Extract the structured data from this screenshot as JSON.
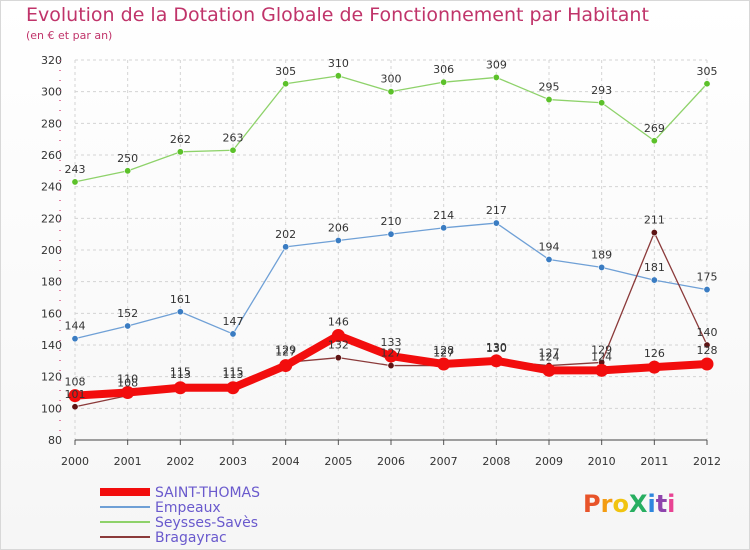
{
  "header": {
    "title": "Evolution de la Dotation Globale de Fonctionnement par Habitant",
    "subtitle": "(en € et par an)"
  },
  "logo": {
    "text": "ProXiti",
    "colors": [
      "#e8542a",
      "#f39c12",
      "#f1c40f",
      "#27ae60",
      "#2e86de",
      "#8e44ad",
      "#e84393"
    ]
  },
  "chart_data": {
    "type": "line",
    "title": "Evolution de la Dotation Globale de Fonctionnement par Habitant",
    "subtitle": "(en € et par an)",
    "xlabel": "",
    "ylabel": "",
    "x": [
      "2000",
      "2001",
      "2002",
      "2003",
      "2004",
      "2005",
      "2006",
      "2007",
      "2008",
      "2009",
      "2010",
      "2011",
      "2012"
    ],
    "yticks": [
      80,
      100,
      120,
      140,
      160,
      180,
      200,
      220,
      240,
      260,
      280,
      300,
      320
    ],
    "ylim": [
      80,
      320
    ],
    "grid": true,
    "legend_position": "bottom-left",
    "series": [
      {
        "name": "Seysses-Savès",
        "color": "#8ed26a",
        "marker": "#5cc12a",
        "values": [
          243,
          250,
          262,
          263,
          305,
          310,
          300,
          306,
          309,
          295,
          293,
          269,
          305
        ]
      },
      {
        "name": "Empeaux",
        "color": "#6fa0d6",
        "marker": "#3a7cc2",
        "values": [
          144,
          152,
          161,
          147,
          202,
          206,
          210,
          214,
          217,
          194,
          189,
          181,
          175
        ]
      },
      {
        "name": "Bragayrac",
        "color": "#8b3a3a",
        "marker": "#5e1414",
        "values": [
          101,
          108,
          115,
          115,
          129,
          132,
          127,
          127,
          130,
          127,
          129,
          211,
          140
        ]
      },
      {
        "name": "SAINT-THOMAS",
        "color": "#f20d0d",
        "marker": "#f20d0d",
        "values": [
          108,
          110,
          113,
          113,
          127,
          146,
          133,
          128,
          130,
          124,
          124,
          126,
          128
        ]
      }
    ],
    "legend": [
      "SAINT-THOMAS",
      "Empeaux",
      "Seysses-Savès",
      "Bragayrac"
    ]
  }
}
